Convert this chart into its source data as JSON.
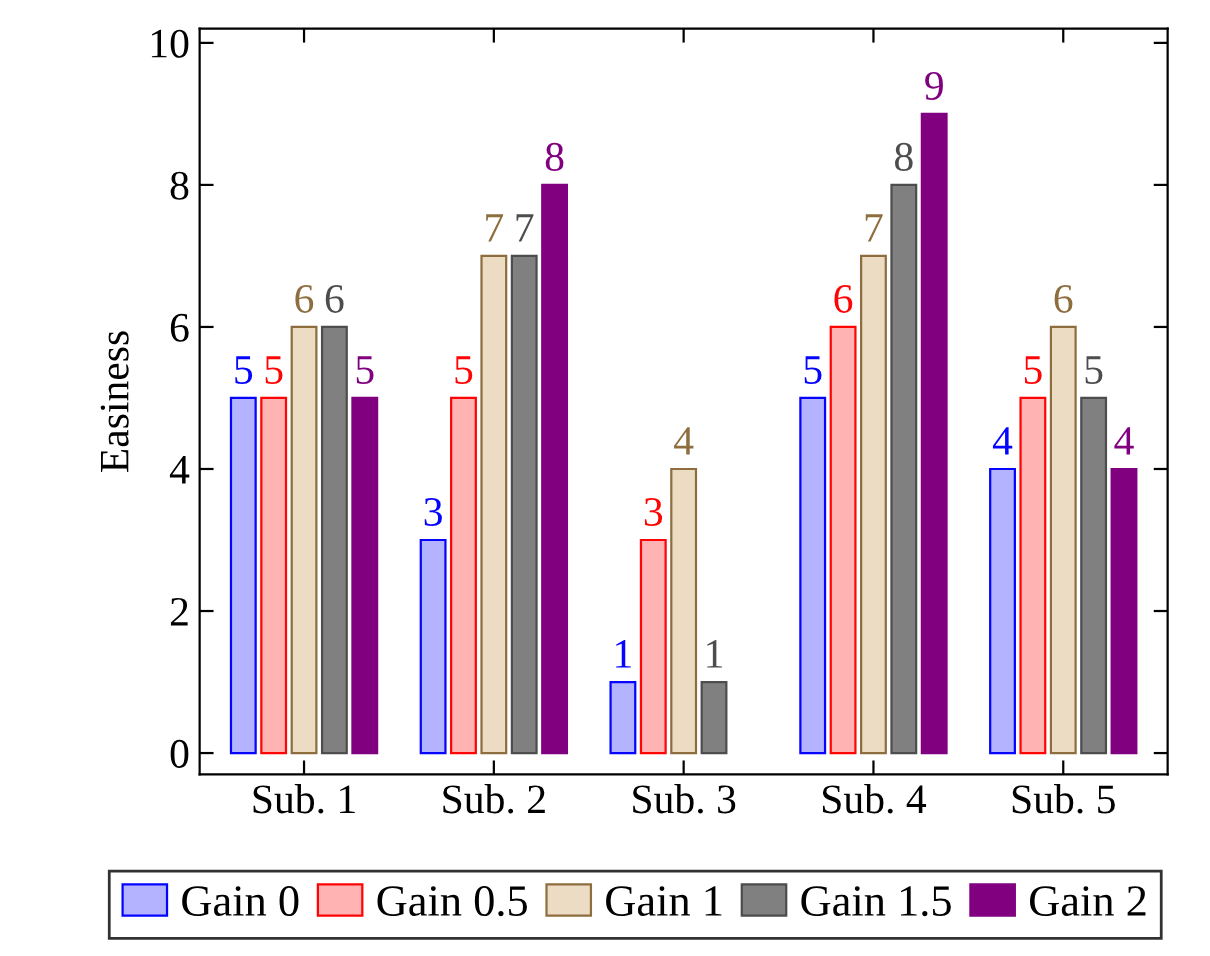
{
  "chart_data": {
    "type": "bar",
    "ylabel": "Easiness",
    "categories": [
      "Sub. 1",
      "Sub. 2",
      "Sub. 3",
      "Sub. 4",
      "Sub. 5"
    ],
    "series": [
      {
        "name": "Gain 0",
        "color": "#b3b3ff",
        "values": [
          5,
          3,
          1,
          5,
          4
        ]
      },
      {
        "name": "Gain 0.5",
        "color": "#ffb3b3",
        "values": [
          5,
          5,
          3,
          6,
          5
        ]
      },
      {
        "name": "Gain 1",
        "color": "#ecdcc4",
        "values": [
          6,
          7,
          4,
          7,
          6
        ]
      },
      {
        "name": "Gain 1.5",
        "color": "#808080",
        "values": [
          6,
          7,
          1,
          8,
          5
        ]
      },
      {
        "name": "Gain 2",
        "color": "#800080",
        "values": [
          5,
          8,
          null,
          9,
          4
        ]
      }
    ],
    "ylim": [
      -0.3,
      10.2
    ],
    "yticks": [
      0,
      2,
      4,
      6,
      8,
      10
    ],
    "data_labels": true,
    "legend": "bottom",
    "grid": false
  }
}
